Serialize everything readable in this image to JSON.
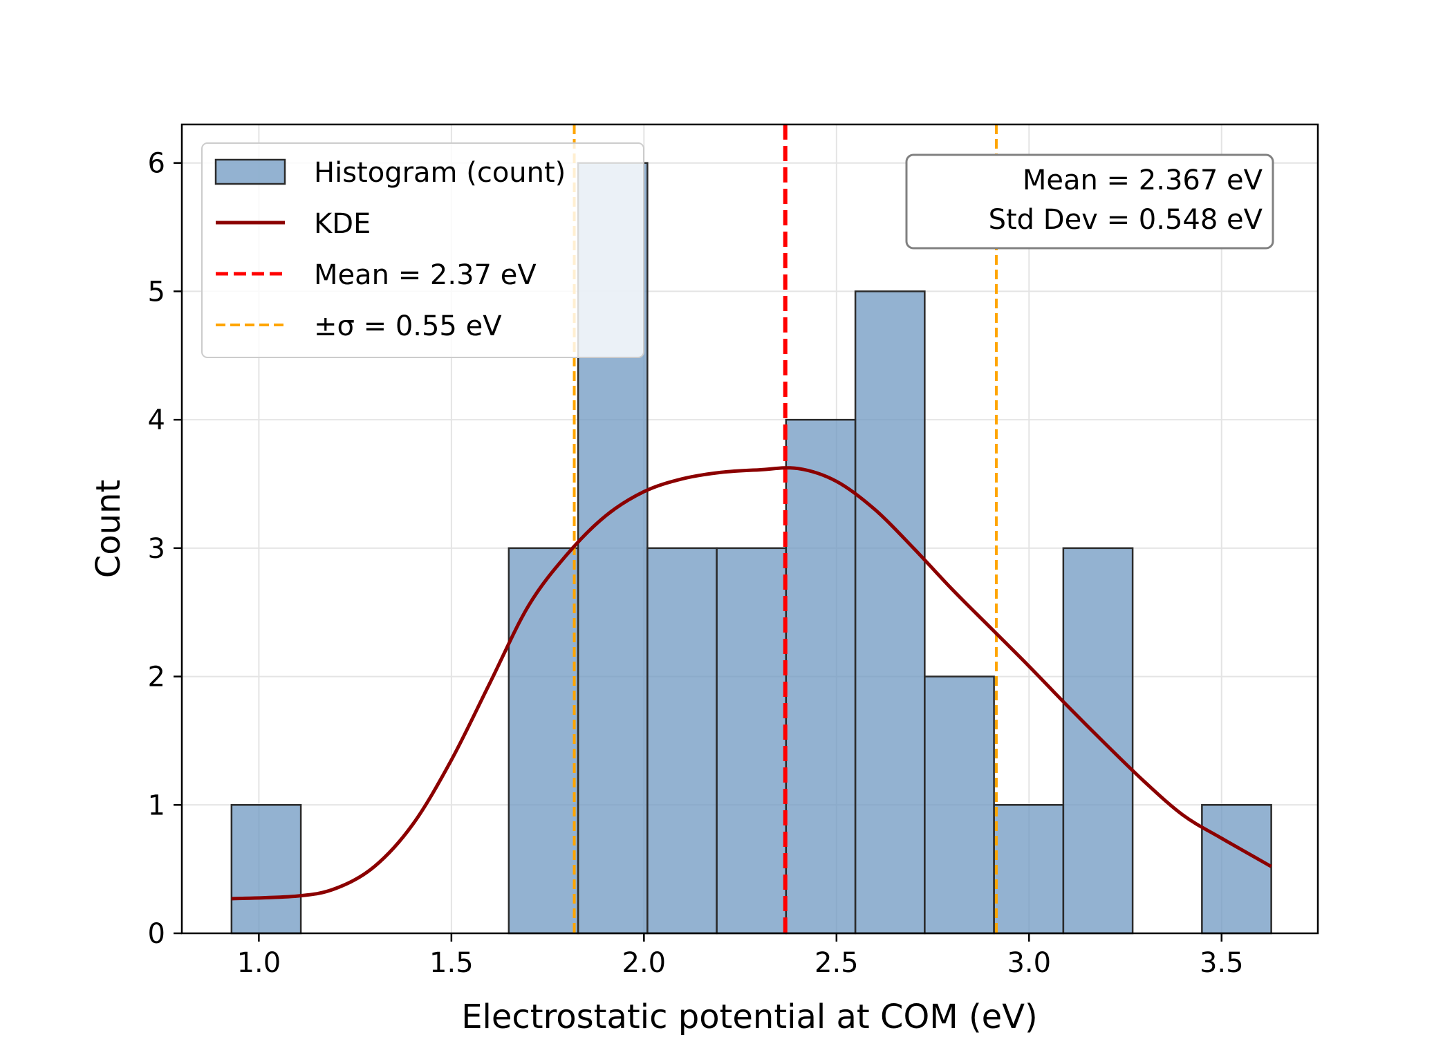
{
  "chart_data": {
    "type": "histogram",
    "title": "",
    "xlabel": "Electrostatic potential at COM (eV)",
    "ylabel": "Count",
    "xlim": [
      0.8,
      3.75
    ],
    "ylim": [
      0,
      6.3
    ],
    "xticks": [
      1.0,
      1.5,
      2.0,
      2.5,
      3.0,
      3.5
    ],
    "xtick_labels": [
      "1.0",
      "1.5",
      "2.0",
      "2.5",
      "3.0",
      "3.5"
    ],
    "yticks": [
      0,
      1,
      2,
      3,
      4,
      5,
      6
    ],
    "ytick_labels": [
      "0",
      "1",
      "2",
      "3",
      "4",
      "5",
      "6"
    ],
    "grid": true,
    "bin_edges": [
      0.929,
      1.109,
      1.289,
      1.469,
      1.649,
      1.829,
      2.009,
      2.189,
      2.369,
      2.549,
      2.729,
      2.909,
      3.089,
      3.269,
      3.449,
      3.629
    ],
    "counts": [
      1,
      0,
      0,
      0,
      3,
      6,
      3,
      3,
      4,
      5,
      2,
      1,
      3,
      0,
      1
    ],
    "kde": {
      "x": [
        0.929,
        1.1,
        1.2,
        1.3,
        1.4,
        1.5,
        1.6,
        1.7,
        1.8,
        1.9,
        2.0,
        2.1,
        2.2,
        2.3,
        2.4,
        2.5,
        2.6,
        2.7,
        2.8,
        2.9,
        3.0,
        3.1,
        3.2,
        3.3,
        3.4,
        3.5,
        3.629
      ],
      "y": [
        0.27,
        0.29,
        0.35,
        0.52,
        0.85,
        1.35,
        1.95,
        2.55,
        2.95,
        3.25,
        3.44,
        3.54,
        3.59,
        3.61,
        3.62,
        3.52,
        3.3,
        3.0,
        2.68,
        2.38,
        2.08,
        1.77,
        1.47,
        1.18,
        0.92,
        0.74,
        0.52
      ]
    },
    "mean": 2.367,
    "std": 0.548,
    "colors": {
      "bars": "#6f98c2",
      "bar_edge": "#2b2b2b",
      "kde": "#8b0000",
      "mean_line": "#ff0000",
      "sigma_line": "#ffa500"
    },
    "legend": {
      "position": "top-left",
      "entries": [
        {
          "label": "Histogram (count)",
          "kind": "patch"
        },
        {
          "label": "KDE",
          "kind": "line"
        },
        {
          "label": "Mean = 2.37 eV",
          "kind": "mean"
        },
        {
          "label": "±σ = 0.55 eV",
          "kind": "sigma"
        }
      ]
    },
    "stats_box": {
      "position": "top-right",
      "lines": [
        "Mean = 2.367 eV",
        "Std Dev = 0.548 eV"
      ]
    }
  }
}
